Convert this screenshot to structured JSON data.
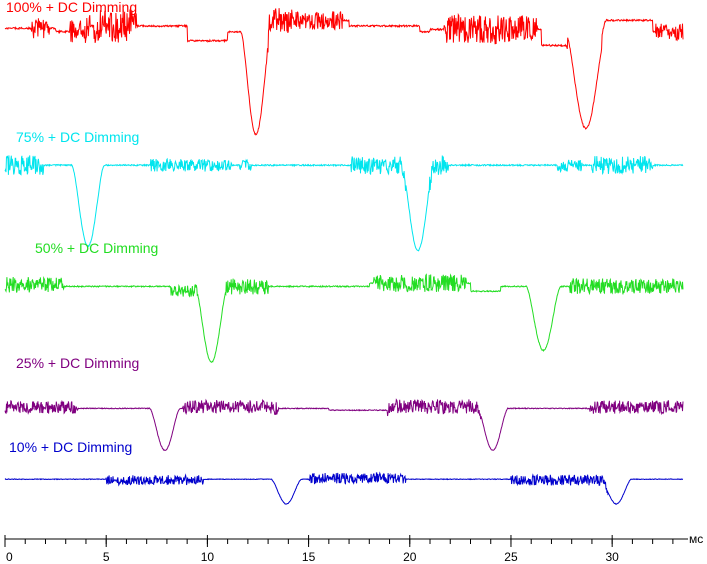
{
  "chart_data": {
    "type": "line",
    "title": "",
    "xlabel": "",
    "x_unit": "мс",
    "ylabel": "",
    "xlim": [
      0,
      33.5
    ],
    "x_major_ticks": [
      0,
      5,
      10,
      15,
      20,
      25,
      30
    ],
    "x_tick_labels": [
      "0",
      "5",
      "10",
      "15",
      "20",
      "25",
      "30"
    ],
    "x_minor_step": 1,
    "grid": false,
    "legend": "none",
    "series": [
      {
        "name": "100% + DC Dimming",
        "color": "#ff0000",
        "baseline": 0.88,
        "noise": [
          {
            "from": 1.3,
            "to": 2.2,
            "amp": 0.18,
            "seed": 0
          },
          {
            "from": 3.2,
            "to": 4.2,
            "amp": 0.2,
            "seed": 0
          },
          {
            "from": 4.4,
            "to": 6.5,
            "amp": 0.3,
            "seed": 0
          },
          {
            "from": 12.9,
            "to": 14.2,
            "amp": 0.22,
            "seed": 0
          },
          {
            "from": 14.2,
            "to": 16.7,
            "amp": 0.16,
            "seed": 0
          },
          {
            "from": 21.7,
            "to": 26.3,
            "amp": 0.26,
            "seed": 0
          },
          {
            "from": 32.1,
            "to": 33.5,
            "amp": 0.16,
            "seed": 0
          }
        ],
        "steps": [
          {
            "from": 0,
            "to": 2.5,
            "dy": 0.03
          },
          {
            "from": 4.0,
            "to": 9.0,
            "dy": 0.05
          },
          {
            "from": 9.0,
            "to": 11.0,
            "dy": -0.08
          },
          {
            "from": 13.0,
            "to": 17.0,
            "dy": 0.1
          },
          {
            "from": 17.0,
            "to": 20.5,
            "dy": 0.05
          },
          {
            "from": 21.0,
            "to": 26.5,
            "dy": 0.02
          },
          {
            "from": 26.5,
            "to": 27.8,
            "dy": -0.12
          },
          {
            "from": 29.5,
            "to": 32.0,
            "dy": 0.1
          }
        ],
        "dips": [
          {
            "center": 12.4,
            "halfwidth": 0.75,
            "depth": 0.9
          },
          {
            "center": 28.7,
            "halfwidth": 1.0,
            "depth": 0.85
          }
        ]
      },
      {
        "name": "75% + DC Dimming",
        "color": "#00e5ee",
        "baseline": 0.72,
        "noise": [
          {
            "from": 0,
            "to": 1.9,
            "amp": 0.22,
            "seed": 1
          },
          {
            "from": 7.2,
            "to": 11.2,
            "amp": 0.14,
            "seed": 1
          },
          {
            "from": 11.6,
            "to": 12.2,
            "amp": 0.12,
            "seed": 1
          },
          {
            "from": 17.1,
            "to": 19.8,
            "amp": 0.2,
            "seed": 1
          },
          {
            "from": 20.9,
            "to": 21.9,
            "amp": 0.22,
            "seed": 1
          },
          {
            "from": 27.3,
            "to": 28.5,
            "amp": 0.14,
            "seed": 1
          },
          {
            "from": 29.0,
            "to": 32.0,
            "amp": 0.2,
            "seed": 1
          }
        ],
        "steps": [],
        "dips": [
          {
            "center": 4.1,
            "halfwidth": 0.8,
            "depth": 0.9
          },
          {
            "center": 20.4,
            "halfwidth": 0.8,
            "depth": 0.95
          }
        ]
      },
      {
        "name": "50% + DC Dimming",
        "color": "#22dd22",
        "baseline": 0.57,
        "noise": [
          {
            "from": 0,
            "to": 2.9,
            "amp": 0.2,
            "seed": 2
          },
          {
            "from": 8.2,
            "to": 9.5,
            "amp": 0.14,
            "seed": 2
          },
          {
            "from": 10.9,
            "to": 13.0,
            "amp": 0.2,
            "seed": 2
          },
          {
            "from": 18.2,
            "to": 22.8,
            "amp": 0.22,
            "seed": 2
          },
          {
            "from": 27.9,
            "to": 33.5,
            "amp": 0.2,
            "seed": 2
          }
        ],
        "steps": [
          {
            "from": 0,
            "to": 2.8,
            "dy": 0.02
          },
          {
            "from": 8.2,
            "to": 9.4,
            "dy": -0.06
          },
          {
            "from": 18.0,
            "to": 23.0,
            "dy": 0.04
          },
          {
            "from": 23.0,
            "to": 24.5,
            "dy": -0.06
          }
        ],
        "dips": [
          {
            "center": 10.2,
            "halfwidth": 0.8,
            "depth": 0.95
          },
          {
            "center": 26.6,
            "halfwidth": 0.85,
            "depth": 0.8
          }
        ]
      },
      {
        "name": "25% + DC Dimming",
        "color": "#800080",
        "baseline": 0.36,
        "noise": [
          {
            "from": 0,
            "to": 3.6,
            "amp": 0.22,
            "seed": 3
          },
          {
            "from": 8.8,
            "to": 13.5,
            "amp": 0.22,
            "seed": 3
          },
          {
            "from": 18.9,
            "to": 23.5,
            "amp": 0.24,
            "seed": 3
          },
          {
            "from": 28.9,
            "to": 33.5,
            "amp": 0.22,
            "seed": 3
          }
        ],
        "steps": [
          {
            "from": 0,
            "to": 3.6,
            "dy": 0.02
          },
          {
            "from": 9.0,
            "to": 13.0,
            "dy": 0.03
          },
          {
            "from": 16.0,
            "to": 19.0,
            "dy": -0.03
          },
          {
            "from": 19.0,
            "to": 23.3,
            "dy": 0.03
          },
          {
            "from": 29.0,
            "to": 33.5,
            "dy": 0.02
          }
        ],
        "dips": [
          {
            "center": 7.9,
            "halfwidth": 0.75,
            "depth": 0.7
          },
          {
            "center": 24.1,
            "halfwidth": 0.75,
            "depth": 0.7
          }
        ]
      },
      {
        "name": "10% + DC Dimming",
        "color": "#0000cc",
        "baseline": 0.24,
        "noise": [
          {
            "from": 5.0,
            "to": 9.8,
            "amp": 0.22,
            "seed": 4
          },
          {
            "from": 15.0,
            "to": 19.8,
            "amp": 0.24,
            "seed": 4
          },
          {
            "from": 25.0,
            "to": 29.8,
            "amp": 0.24,
            "seed": 4
          }
        ],
        "steps": [
          {
            "from": 5.0,
            "to": 9.8,
            "dy": -0.02
          },
          {
            "from": 15.0,
            "to": 19.8,
            "dy": 0.02
          },
          {
            "from": 25.0,
            "to": 29.8,
            "dy": -0.02
          }
        ],
        "dips": [
          {
            "center": 13.9,
            "halfwidth": 0.75,
            "depth": 0.55
          },
          {
            "center": 30.2,
            "halfwidth": 0.75,
            "depth": 0.55
          }
        ]
      }
    ]
  }
}
